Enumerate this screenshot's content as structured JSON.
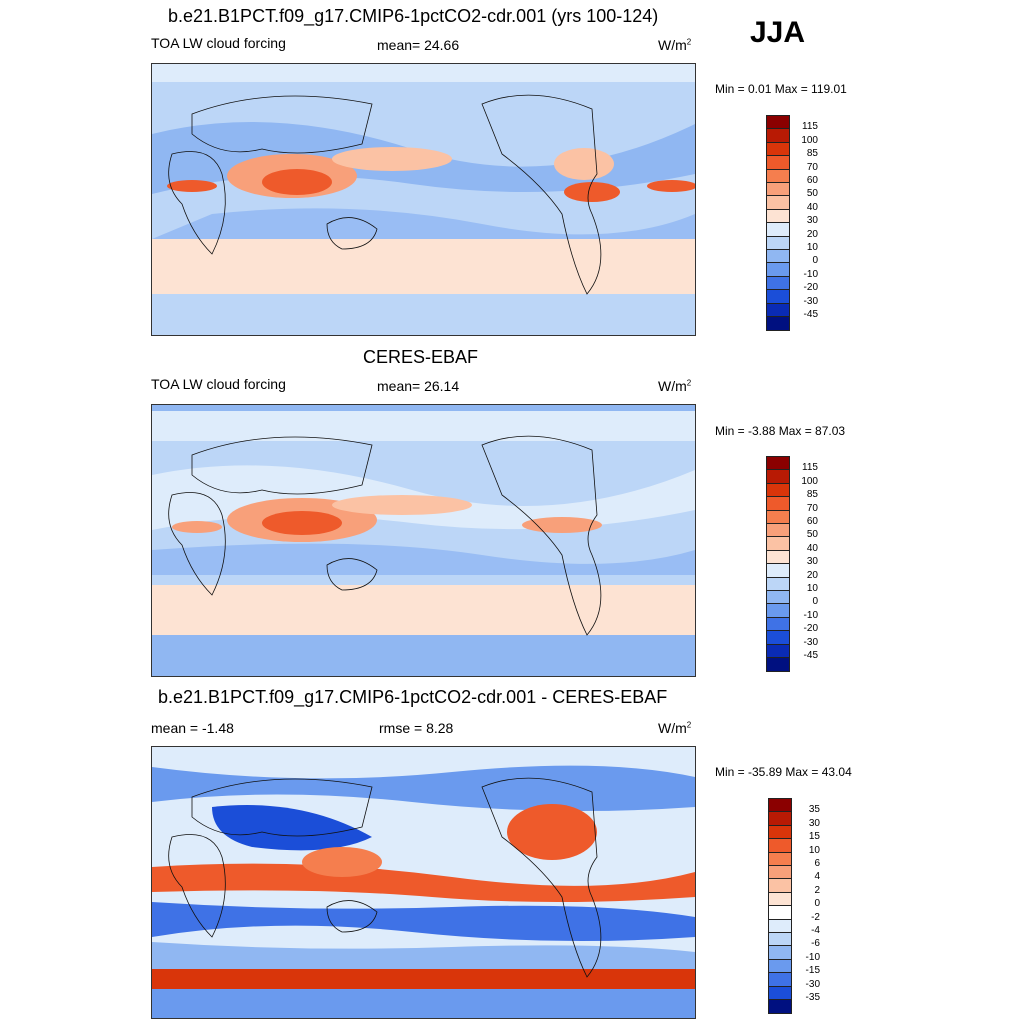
{
  "season_label": "JJA",
  "panels": [
    {
      "title": "b.e21.B1PCT.f09_g17.CMIP6-1pctCO2-cdr.001 (yrs 100-124)",
      "left_label": "TOA LW cloud forcing",
      "center_label": "mean=  24.66",
      "units_base": "W/m",
      "units_exp": "2",
      "minmax": "Min =   0.01 Max = 119.01",
      "colorbar_levels": [
        "115",
        "100",
        "85",
        "70",
        "60",
        "50",
        "40",
        "30",
        "20",
        "10",
        "0",
        "-10",
        "-20",
        "-30",
        "-45"
      ],
      "colorbar_colors": [
        "#8b0000",
        "#b81a04",
        "#d9350a",
        "#ee5a2b",
        "#f57e4e",
        "#f8a07a",
        "#fbc2a4",
        "#fde3d3",
        "#deecfb",
        "#bcd6f7",
        "#90b7f2",
        "#6a9aee",
        "#3f72e6",
        "#1b4ed8",
        "#0a2bb5",
        "#001080"
      ]
    },
    {
      "title": "CERES-EBAF",
      "left_label": "TOA LW cloud forcing",
      "center_label": "mean=  26.14",
      "units_base": "W/m",
      "units_exp": "2",
      "minmax": "Min =  -3.88 Max =  87.03",
      "colorbar_levels": [
        "115",
        "100",
        "85",
        "70",
        "60",
        "50",
        "40",
        "30",
        "20",
        "10",
        "0",
        "-10",
        "-20",
        "-30",
        "-45"
      ],
      "colorbar_colors": [
        "#8b0000",
        "#b81a04",
        "#d9350a",
        "#ee5a2b",
        "#f57e4e",
        "#f8a07a",
        "#fbc2a4",
        "#fde3d3",
        "#deecfb",
        "#bcd6f7",
        "#90b7f2",
        "#6a9aee",
        "#3f72e6",
        "#1b4ed8",
        "#0a2bb5",
        "#001080"
      ]
    },
    {
      "title": "b.e21.B1PCT.f09_g17.CMIP6-1pctCO2-cdr.001 - CERES-EBAF",
      "left_label": "mean =  -1.48",
      "center_label": "rmse =   8.28",
      "units_base": "W/m",
      "units_exp": "2",
      "minmax": "Min = -35.89 Max =  43.04",
      "colorbar_levels": [
        "35",
        "30",
        "15",
        "10",
        "6",
        "4",
        "2",
        "0",
        "-2",
        "-4",
        "-6",
        "-10",
        "-15",
        "-30",
        "-35"
      ],
      "colorbar_colors": [
        "#8b0000",
        "#b81a04",
        "#d9350a",
        "#ee5a2b",
        "#f57e4e",
        "#f8a07a",
        "#fbc2a4",
        "#fde3d3",
        "#ffffff",
        "#deecfb",
        "#bcd6f7",
        "#90b7f2",
        "#6a9aee",
        "#3f72e6",
        "#1b4ed8",
        "#001080"
      ]
    }
  ]
}
